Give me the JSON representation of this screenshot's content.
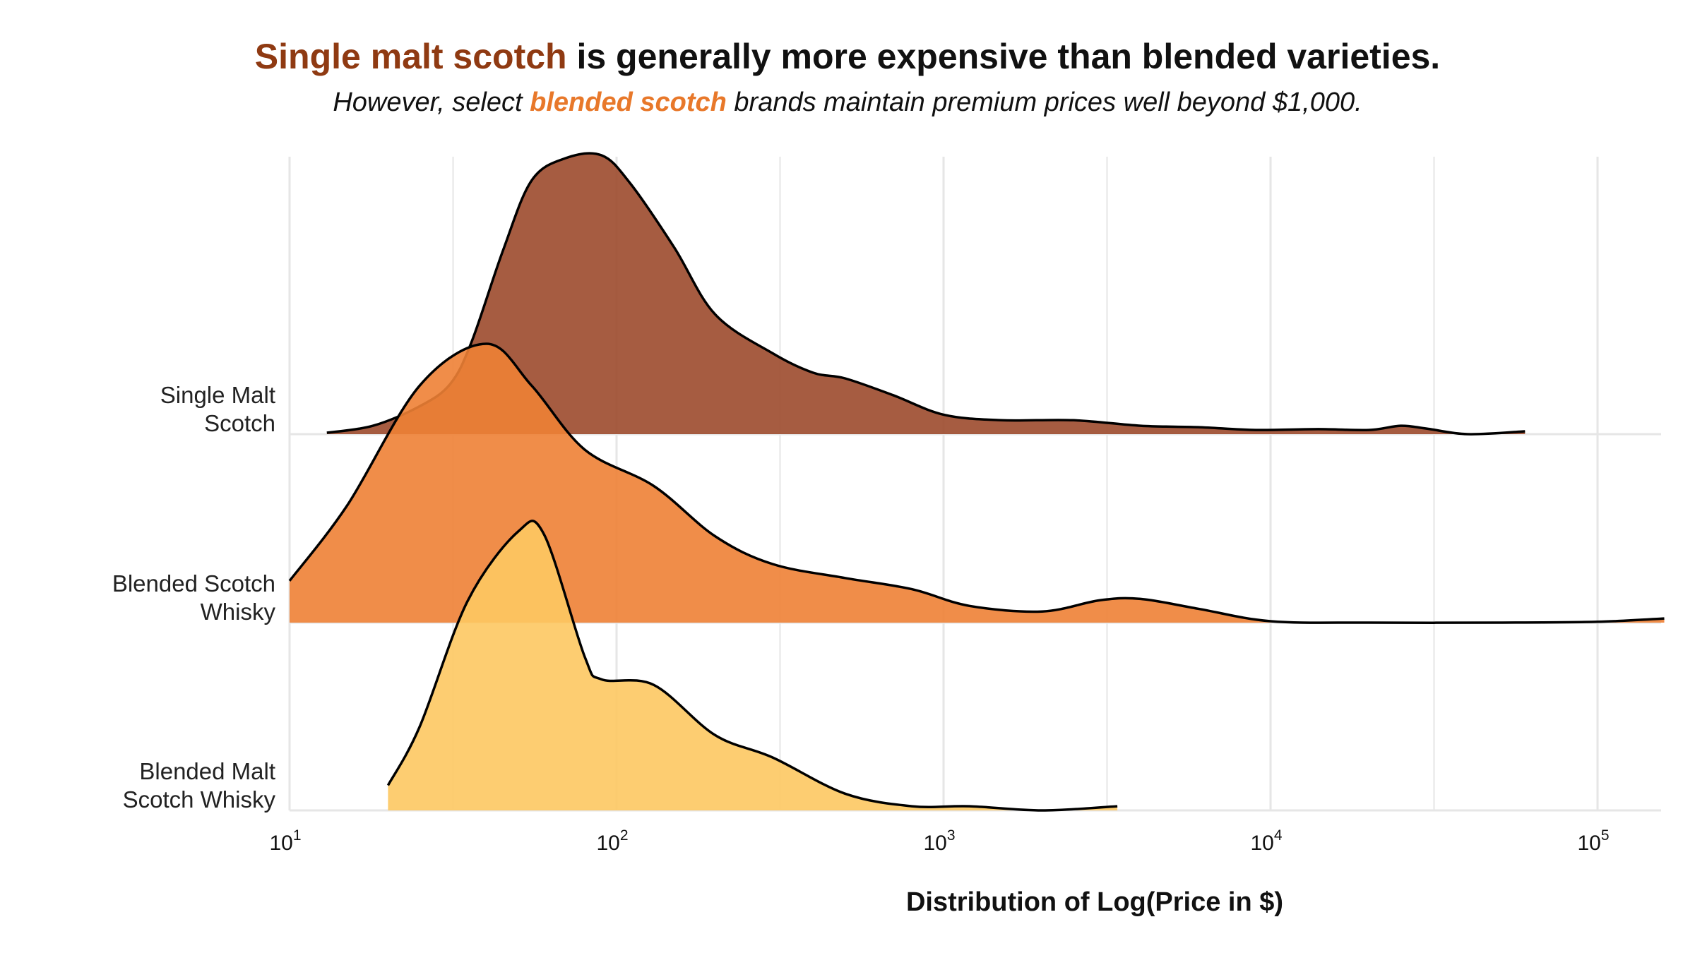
{
  "title": {
    "highlight": "Single malt scotch",
    "rest": " is generally more expensive than blended varieties."
  },
  "subtitle": {
    "before": "However, select ",
    "highlight": "blended scotch",
    "after": " brands maintain premium prices well beyond $1,000."
  },
  "colors": {
    "single_malt": "#9c4a2c",
    "blended_scotch": "#ee8135",
    "blended_malt": "#fdc862",
    "single_malt_title": "#8f3a12",
    "blended_title": "#e8782a",
    "grid": "#e6e6e6",
    "outline": "#000000"
  },
  "chart_data": {
    "type": "ridgeline-density",
    "title": "Single malt scotch is generally more expensive than blended varieties.",
    "subtitle": "However, select blended scotch brands maintain premium prices well beyond $1,000.",
    "xlabel": "Distribution of Log(Price in $)",
    "ylabel": "",
    "x_scale": "log10",
    "xlim": [
      10,
      160000
    ],
    "x_ticks": [
      {
        "value": 10,
        "base": "10",
        "exp": "1"
      },
      {
        "value": 100,
        "base": "10",
        "exp": "2"
      },
      {
        "value": 1000,
        "base": "10",
        "exp": "3"
      },
      {
        "value": 10000,
        "base": "10",
        "exp": "4"
      },
      {
        "value": 100000,
        "base": "10",
        "exp": "5"
      }
    ],
    "grid": true,
    "legend": "none",
    "series": [
      {
        "name": "Single Malt Scotch",
        "label_lines": [
          "Single Malt",
          "Scotch"
        ],
        "color": "#9c4a2c",
        "points": [
          [
            13,
            0.005
          ],
          [
            18,
            0.03
          ],
          [
            25,
            0.1
          ],
          [
            31,
            0.18
          ],
          [
            36,
            0.33
          ],
          [
            45,
            0.66
          ],
          [
            55,
            0.91
          ],
          [
            70,
            0.99
          ],
          [
            90,
            1.0
          ],
          [
            110,
            0.9
          ],
          [
            150,
            0.67
          ],
          [
            200,
            0.43
          ],
          [
            300,
            0.29
          ],
          [
            400,
            0.22
          ],
          [
            500,
            0.2
          ],
          [
            700,
            0.14
          ],
          [
            1000,
            0.07
          ],
          [
            1500,
            0.05
          ],
          [
            2500,
            0.05
          ],
          [
            4000,
            0.03
          ],
          [
            6000,
            0.025
          ],
          [
            9000,
            0.015
          ],
          [
            14000,
            0.018
          ],
          [
            20000,
            0.015
          ],
          [
            25000,
            0.03
          ],
          [
            30000,
            0.02
          ],
          [
            40000,
            0.0
          ],
          [
            60000,
            0.01
          ]
        ]
      },
      {
        "name": "Blended Scotch Whisky",
        "label_lines": [
          "Blended Scotch",
          "Whisky"
        ],
        "color": "#ee8135",
        "points": [
          [
            10,
            0.15
          ],
          [
            15,
            0.42
          ],
          [
            25,
            0.85
          ],
          [
            40,
            1.0
          ],
          [
            55,
            0.85
          ],
          [
            80,
            0.62
          ],
          [
            130,
            0.49
          ],
          [
            200,
            0.31
          ],
          [
            300,
            0.21
          ],
          [
            500,
            0.16
          ],
          [
            800,
            0.12
          ],
          [
            1200,
            0.06
          ],
          [
            2000,
            0.04
          ],
          [
            3000,
            0.08
          ],
          [
            4000,
            0.085
          ],
          [
            6000,
            0.05
          ],
          [
            10000,
            0.005
          ],
          [
            20000,
            0.0
          ],
          [
            50000,
            0.0
          ],
          [
            100000,
            0.003
          ],
          [
            160000,
            0.015
          ]
        ]
      },
      {
        "name": "Blended Malt Scotch Whisky",
        "label_lines": [
          "Blended Malt",
          "Scotch Whisky"
        ],
        "color": "#fdc862",
        "points": [
          [
            20,
            0.09
          ],
          [
            25,
            0.3
          ],
          [
            35,
            0.75
          ],
          [
            50,
            1.0
          ],
          [
            60,
            0.99
          ],
          [
            80,
            0.55
          ],
          [
            90,
            0.47
          ],
          [
            130,
            0.45
          ],
          [
            200,
            0.27
          ],
          [
            300,
            0.19
          ],
          [
            500,
            0.06
          ],
          [
            800,
            0.015
          ],
          [
            1200,
            0.015
          ],
          [
            2000,
            0.0
          ],
          [
            3400,
            0.015
          ]
        ]
      }
    ]
  }
}
